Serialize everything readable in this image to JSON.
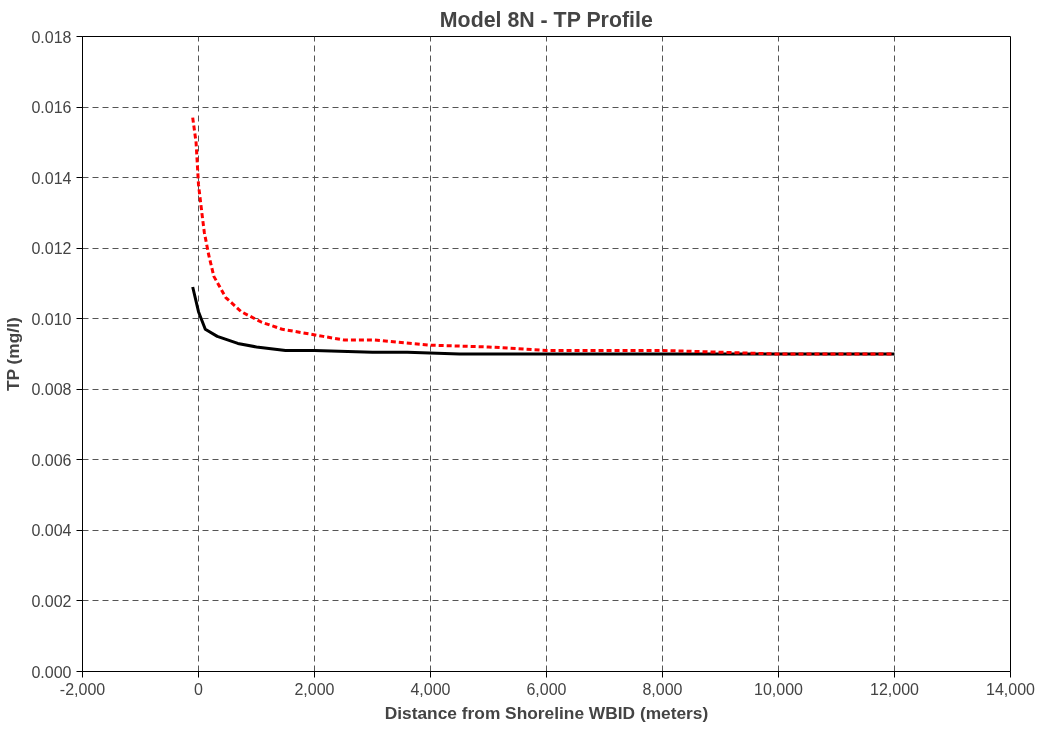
{
  "chart_data": {
    "type": "line",
    "title": "Model 8N - TP Profile",
    "xlabel": "Distance from Shoreline WBID (meters)",
    "ylabel": "TP (mg/l)",
    "xlim": [
      -2000,
      14000
    ],
    "ylim": [
      0,
      0.018
    ],
    "xticks": [
      {
        "value": -2000,
        "label": "-2,000"
      },
      0,
      {
        "value": 2000,
        "label": "2,000"
      },
      {
        "value": 4000,
        "label": "4,000"
      },
      {
        "value": 6000,
        "label": "6,000"
      },
      {
        "value": 8000,
        "label": "8,000"
      },
      {
        "value": 10000,
        "label": "10,000"
      },
      {
        "value": 12000,
        "label": "12,000"
      },
      {
        "value": 14000,
        "label": "14,000"
      }
    ],
    "yticks": [
      {
        "value": 0,
        "label": "0.000"
      },
      {
        "value": 0.002,
        "label": "0.002"
      },
      {
        "value": 0.004,
        "label": "0.004"
      },
      {
        "value": 0.006,
        "label": "0.006"
      },
      {
        "value": 0.008,
        "label": "0.008"
      },
      {
        "value": 0.01,
        "label": "0.010"
      },
      {
        "value": 0.012,
        "label": "0.012"
      },
      {
        "value": 0.014,
        "label": "0.014"
      },
      {
        "value": 0.016,
        "label": "0.016"
      },
      {
        "value": 0.018,
        "label": "0.018"
      }
    ],
    "grid": true,
    "series": [
      {
        "color": "#ff0000",
        "line_style": "dashed",
        "x": [
          -100,
          -42,
          0,
          58,
          100,
          177,
          265,
          470,
          736,
          1090,
          1444,
          1800,
          2150,
          2500,
          3000,
          4000,
          5000,
          6000,
          8000,
          10000,
          12000
        ],
        "values": [
          0.0157,
          0.015,
          0.0138,
          0.013,
          0.01245,
          0.0118,
          0.0112,
          0.0106,
          0.0102,
          0.0099,
          0.0097,
          0.0096,
          0.0095,
          0.0094,
          0.0094,
          0.00925,
          0.0092,
          0.0091,
          0.0091,
          0.009,
          0.009
        ]
      },
      {
        "color": "#000000",
        "line_style": "solid",
        "x": [
          -100,
          0,
          117,
          324,
          678,
          1000,
          1500,
          2000,
          3000,
          3600,
          4500,
          6000,
          8000,
          10000,
          12000
        ],
        "values": [
          0.0109,
          0.0102,
          0.0097,
          0.0095,
          0.0093,
          0.0092,
          0.0091,
          0.0091,
          0.00905,
          0.00905,
          0.009,
          0.009,
          0.009,
          0.009,
          0.009
        ]
      }
    ]
  }
}
